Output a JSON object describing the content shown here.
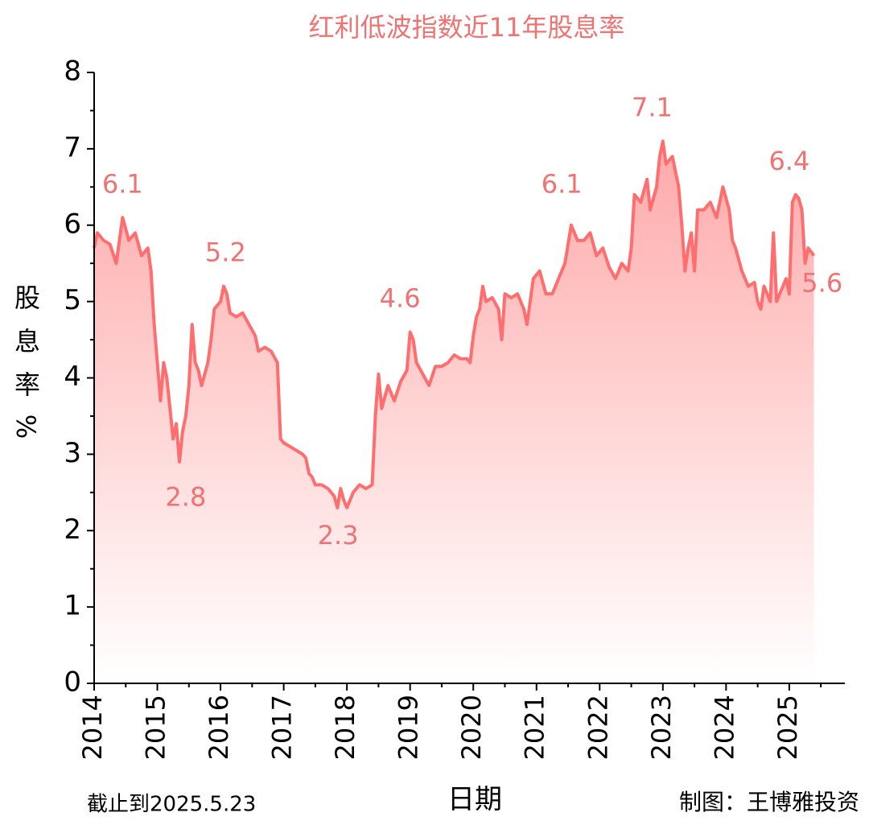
{
  "chart_data": {
    "type": "line",
    "title": "红利低波指数近11年股息率",
    "xlabel": "日期",
    "ylabel": "股息率%",
    "note_left": "截止到2025.5.23",
    "note_right": "制图：王博雅投资",
    "color": "#ff6e6e",
    "area": true,
    "xlim": [
      2014,
      2025.88
    ],
    "xticks": [
      2014,
      2015,
      2016,
      2017,
      2018,
      2019,
      2020,
      2021,
      2022,
      2023,
      2024,
      2025
    ],
    "xminorticks": [
      2014.5,
      2015.5,
      2016.5,
      2017.5,
      2018.5,
      2019.5,
      2020.5,
      2021.5,
      2022.5,
      2023.5,
      2024.5,
      2025.5
    ],
    "ylim": [
      0,
      8
    ],
    "yticks": [
      0,
      1,
      2,
      3,
      4,
      5,
      6,
      7,
      8
    ],
    "yminorticks": [
      0.5,
      1.5,
      2.5,
      3.5,
      4.5,
      5.5,
      6.5,
      7.5
    ],
    "x": [
      2014.0,
      2014.05,
      2014.15,
      2014.25,
      2014.35,
      2014.45,
      2014.55,
      2014.65,
      2014.75,
      2014.85,
      2014.9,
      2014.95,
      2015.0,
      2015.05,
      2015.1,
      2015.15,
      2015.2,
      2015.25,
      2015.3,
      2015.35,
      2015.4,
      2015.45,
      2015.5,
      2015.55,
      2015.6,
      2015.65,
      2015.7,
      2015.8,
      2015.85,
      2015.9,
      2016.0,
      2016.05,
      2016.1,
      2016.15,
      2016.25,
      2016.35,
      2016.45,
      2016.55,
      2016.6,
      2016.7,
      2016.8,
      2016.9,
      2016.95,
      2017.0,
      2017.1,
      2017.2,
      2017.3,
      2017.35,
      2017.4,
      2017.45,
      2017.5,
      2017.6,
      2017.7,
      2017.8,
      2017.85,
      2017.9,
      2017.95,
      2018.0,
      2018.1,
      2018.2,
      2018.3,
      2018.4,
      2018.45,
      2018.5,
      2018.55,
      2018.65,
      2018.75,
      2018.85,
      2018.95,
      2019.0,
      2019.05,
      2019.1,
      2019.2,
      2019.3,
      2019.4,
      2019.5,
      2019.6,
      2019.7,
      2019.8,
      2019.9,
      2019.95,
      2020.0,
      2020.05,
      2020.1,
      2020.15,
      2020.2,
      2020.3,
      2020.4,
      2020.45,
      2020.5,
      2020.6,
      2020.7,
      2020.8,
      2020.85,
      2020.95,
      2021.05,
      2021.15,
      2021.25,
      2021.35,
      2021.45,
      2021.55,
      2021.65,
      2021.75,
      2021.85,
      2021.95,
      2022.05,
      2022.15,
      2022.25,
      2022.35,
      2022.45,
      2022.5,
      2022.55,
      2022.65,
      2022.75,
      2022.8,
      2022.9,
      2022.95,
      2023.0,
      2023.05,
      2023.15,
      2023.25,
      2023.3,
      2023.35,
      2023.4,
      2023.45,
      2023.5,
      2023.55,
      2023.65,
      2023.75,
      2023.85,
      2023.95,
      2024.05,
      2024.1,
      2024.15,
      2024.25,
      2024.35,
      2024.45,
      2024.5,
      2024.55,
      2024.6,
      2024.65,
      2024.7,
      2024.75,
      2024.8,
      2024.9,
      2024.95,
      2025.0,
      2025.05,
      2025.1,
      2025.15,
      2025.2,
      2025.25,
      2025.3,
      2025.39
    ],
    "values": [
      5.7,
      5.9,
      5.8,
      5.75,
      5.5,
      6.1,
      5.8,
      5.9,
      5.6,
      5.7,
      5.4,
      4.7,
      4.2,
      3.7,
      4.2,
      4.0,
      3.6,
      3.2,
      3.4,
      2.9,
      3.3,
      3.5,
      3.9,
      4.7,
      4.2,
      4.1,
      3.9,
      4.2,
      4.5,
      4.9,
      5.0,
      5.2,
      5.1,
      4.85,
      4.8,
      4.85,
      4.7,
      4.55,
      4.35,
      4.4,
      4.35,
      4.2,
      3.2,
      3.15,
      3.1,
      3.05,
      3.0,
      2.95,
      2.75,
      2.7,
      2.6,
      2.6,
      2.55,
      2.45,
      2.3,
      2.55,
      2.4,
      2.3,
      2.5,
      2.6,
      2.55,
      2.6,
      3.5,
      4.05,
      3.6,
      3.9,
      3.7,
      3.95,
      4.1,
      4.6,
      4.5,
      4.2,
      4.05,
      3.9,
      4.15,
      4.15,
      4.2,
      4.3,
      4.25,
      4.25,
      4.2,
      4.55,
      4.8,
      4.9,
      5.2,
      5.0,
      5.05,
      4.9,
      4.5,
      5.1,
      5.05,
      5.1,
      4.9,
      4.7,
      5.3,
      5.4,
      5.1,
      5.1,
      5.3,
      5.5,
      6.0,
      5.8,
      5.8,
      5.9,
      5.6,
      5.7,
      5.45,
      5.3,
      5.5,
      5.4,
      5.7,
      6.4,
      6.3,
      6.6,
      6.2,
      6.5,
      6.9,
      7.1,
      6.8,
      6.9,
      6.5,
      6.0,
      5.4,
      5.7,
      5.9,
      5.4,
      6.2,
      6.2,
      6.3,
      6.1,
      6.5,
      6.2,
      5.8,
      5.7,
      5.4,
      5.2,
      5.25,
      5.0,
      4.9,
      5.2,
      5.1,
      5.0,
      5.9,
      5.0,
      5.2,
      5.3,
      5.1,
      6.3,
      6.4,
      6.35,
      6.2,
      5.5,
      5.7,
      5.6
    ],
    "annotations": [
      {
        "x": 2014.45,
        "y": 6.1,
        "position": "above"
      },
      {
        "x": 2015.45,
        "y": 2.8,
        "position": "below"
      },
      {
        "x": 2016.08,
        "y": 5.2,
        "position": "above"
      },
      {
        "x": 2017.86,
        "y": 2.3,
        "position": "below"
      },
      {
        "x": 2018.84,
        "y": 4.6,
        "position": "above"
      },
      {
        "x": 2021.4,
        "y": 6.1,
        "position": "above"
      },
      {
        "x": 2022.83,
        "y": 7.1,
        "position": "above"
      },
      {
        "x": 2025.0,
        "y": 6.4,
        "position": "above"
      },
      {
        "x": 2025.52,
        "y": 5.6,
        "position": "below"
      }
    ]
  }
}
